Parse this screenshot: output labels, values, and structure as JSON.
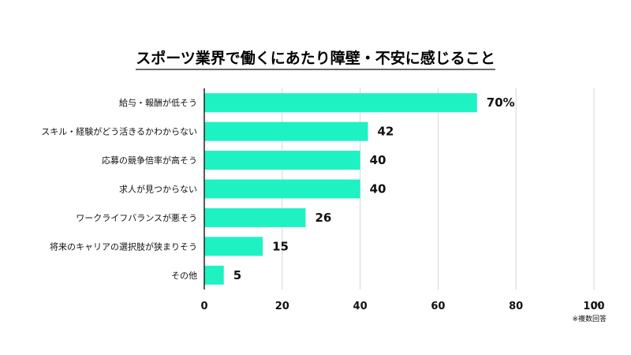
{
  "chart_data": {
    "type": "bar",
    "orientation": "horizontal",
    "title": "スポーツ業界で働くにあたり障壁・不安に感じること",
    "categories": [
      "給与・報酬が低そう",
      "スキル・経験がどう活きるかわからない",
      "応募の競争倍率が高そう",
      "求人が見つからない",
      "ワークライフバランスが悪そう",
      "将来のキャリアの選択肢が狭まりそう",
      "その他"
    ],
    "values": [
      70,
      42,
      40,
      40,
      26,
      15,
      5
    ],
    "value_labels": [
      "70%",
      "42",
      "40",
      "40",
      "26",
      "15",
      "5"
    ],
    "xlim": [
      0,
      100
    ],
    "xticks": [
      "0",
      "20",
      "40",
      "60",
      "80",
      "100"
    ],
    "unit": "(%)",
    "note": "※複数回答",
    "grid": true,
    "bar_color": "#1ef2c2"
  }
}
